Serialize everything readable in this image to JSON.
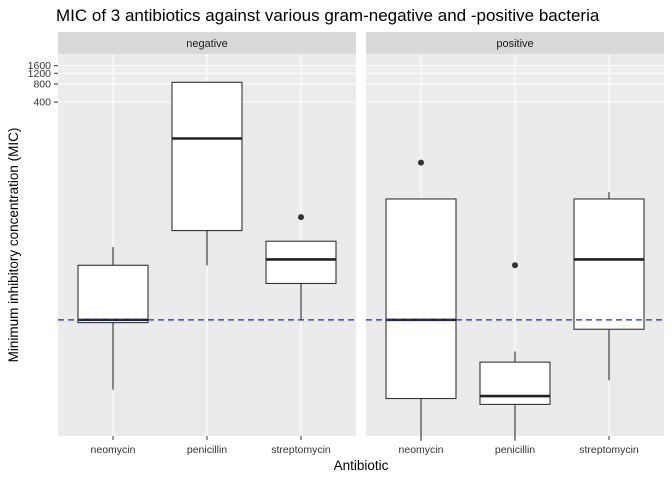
{
  "chart_data": {
    "type": "box",
    "title": "MIC of 3 antibiotics against various gram-negative and -positive bacteria",
    "xlabel": "Antibiotic",
    "ylabel": "Minimum inhibitory concentration (MIC)",
    "y_scale": "log10",
    "ylim": [
      0.0012,
      2500
    ],
    "y_ticks": [
      400,
      800,
      1200,
      1600
    ],
    "y_tick_labels": [
      "400",
      "800",
      "1200",
      "1600"
    ],
    "reference_line": {
      "value": 0.1,
      "color": "#2222dd",
      "style": "dashed"
    },
    "categories": [
      "neomycin",
      "penicillin",
      "streptomycin"
    ],
    "facets": [
      {
        "label": "negative",
        "boxes": [
          {
            "category": "neomycin",
            "whisker_low": 0.007,
            "q1": 0.09,
            "median": 0.1,
            "q3": 0.8,
            "whisker_high": 1.6,
            "outliers": []
          },
          {
            "category": "penicillin",
            "whisker_low": 0.8,
            "q1": 3,
            "median": 100,
            "q3": 850,
            "whisker_high": 850,
            "outliers": []
          },
          {
            "category": "streptomycin",
            "whisker_low": 0.1,
            "q1": 0.4,
            "median": 1,
            "q3": 2,
            "whisker_high": 2,
            "outliers": [
              5
            ]
          }
        ]
      },
      {
        "label": "positive",
        "boxes": [
          {
            "category": "neomycin",
            "whisker_low": 0.001,
            "q1": 0.005,
            "median": 0.1,
            "q3": 10,
            "whisker_high": 10,
            "outliers": [
              40
            ]
          },
          {
            "category": "penicillin",
            "whisker_low": 0.001,
            "q1": 0.004,
            "median": 0.0055,
            "q3": 0.02,
            "whisker_high": 0.03,
            "outliers": [
              0.8
            ]
          },
          {
            "category": "streptomycin",
            "whisker_low": 0.01,
            "q1": 0.07,
            "median": 1,
            "q3": 10,
            "whisker_high": 13,
            "outliers": []
          }
        ]
      }
    ]
  }
}
